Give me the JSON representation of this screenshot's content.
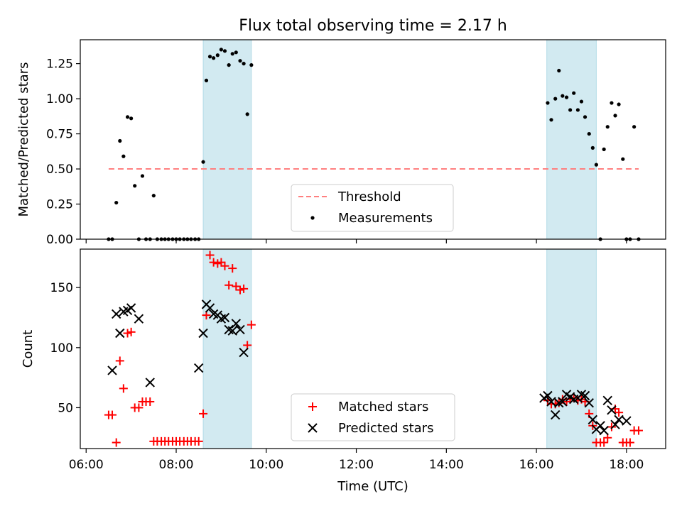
{
  "chart_data": [
    {
      "type": "scatter",
      "title": "Flux total observing time = 2.17 h",
      "xlabel": "",
      "ylabel": "Matched/Predicted stars",
      "xlim": [
        5.87,
        18.87
      ],
      "ylim": [
        0.0,
        1.42
      ],
      "yticks": [
        0.0,
        0.25,
        0.5,
        0.75,
        1.0,
        1.25
      ],
      "ytick_labels": [
        "0.00",
        "0.25",
        "0.50",
        "0.75",
        "1.00",
        "1.25"
      ],
      "shaded_spans": [
        [
          8.6,
          9.67
        ],
        [
          16.23,
          17.33
        ]
      ],
      "threshold": {
        "name": "Threshold",
        "y": 0.5,
        "x": [
          6.5,
          18.27
        ],
        "color": "#ff7f7f"
      },
      "legend": {
        "placement": "lower-center",
        "entries": [
          "Threshold",
          "Measurements"
        ]
      },
      "series": [
        {
          "name": "Measurements",
          "color": "#000000",
          "marker": "dot",
          "points": [
            [
              6.5,
              0.0
            ],
            [
              6.58,
              0.0
            ],
            [
              6.67,
              0.26
            ],
            [
              6.75,
              0.7
            ],
            [
              6.83,
              0.59
            ],
            [
              6.92,
              0.87
            ],
            [
              7.0,
              0.86
            ],
            [
              7.08,
              0.38
            ],
            [
              7.17,
              0.0
            ],
            [
              7.25,
              0.45
            ],
            [
              7.33,
              0.0
            ],
            [
              7.42,
              0.0
            ],
            [
              7.5,
              0.31
            ],
            [
              7.58,
              0.0
            ],
            [
              7.67,
              0.0
            ],
            [
              7.75,
              0.0
            ],
            [
              7.83,
              0.0
            ],
            [
              7.92,
              0.0
            ],
            [
              8.0,
              0.0
            ],
            [
              8.08,
              0.0
            ],
            [
              8.17,
              0.0
            ],
            [
              8.25,
              0.0
            ],
            [
              8.33,
              0.0
            ],
            [
              8.42,
              0.0
            ],
            [
              8.5,
              0.0
            ],
            [
              8.6,
              0.55
            ],
            [
              8.67,
              1.13
            ],
            [
              8.75,
              1.3
            ],
            [
              8.83,
              1.29
            ],
            [
              8.92,
              1.31
            ],
            [
              9.0,
              1.35
            ],
            [
              9.08,
              1.34
            ],
            [
              9.17,
              1.24
            ],
            [
              9.25,
              1.32
            ],
            [
              9.33,
              1.33
            ],
            [
              9.42,
              1.27
            ],
            [
              9.5,
              1.25
            ],
            [
              9.58,
              0.89
            ],
            [
              9.67,
              1.24
            ],
            [
              16.25,
              0.97
            ],
            [
              16.33,
              0.85
            ],
            [
              16.42,
              1.0
            ],
            [
              16.5,
              1.2
            ],
            [
              16.58,
              1.02
            ],
            [
              16.67,
              1.01
            ],
            [
              16.75,
              0.92
            ],
            [
              16.83,
              1.04
            ],
            [
              16.92,
              0.92
            ],
            [
              17.0,
              0.98
            ],
            [
              17.08,
              0.87
            ],
            [
              17.17,
              0.75
            ],
            [
              17.25,
              0.65
            ],
            [
              17.33,
              0.53
            ],
            [
              17.42,
              0.0
            ],
            [
              17.5,
              0.64
            ],
            [
              17.58,
              0.8
            ],
            [
              17.67,
              0.97
            ],
            [
              17.75,
              0.88
            ],
            [
              17.83,
              0.96
            ],
            [
              17.92,
              0.57
            ],
            [
              18.0,
              0.0
            ],
            [
              18.08,
              0.0
            ],
            [
              18.17,
              0.8
            ],
            [
              18.27,
              0.0
            ]
          ]
        }
      ]
    },
    {
      "type": "scatter",
      "title": "",
      "xlabel": "Time (UTC)",
      "ylabel": "Count",
      "xlim": [
        5.87,
        18.87
      ],
      "ylim": [
        16,
        182
      ],
      "xticks": [
        6,
        8,
        10,
        12,
        14,
        16,
        18
      ],
      "xtick_labels": [
        "06:00",
        "08:00",
        "10:00",
        "12:00",
        "14:00",
        "16:00",
        "18:00"
      ],
      "yticks": [
        50,
        100,
        150
      ],
      "ytick_labels": [
        "50",
        "100",
        "150"
      ],
      "shaded_spans": [
        [
          8.6,
          9.67
        ],
        [
          16.23,
          17.33
        ]
      ],
      "legend": {
        "placement": "lower-center",
        "entries": [
          "Matched stars",
          "Predicted stars"
        ]
      },
      "series": [
        {
          "name": "Matched stars",
          "color": "#ff0000",
          "marker": "plus",
          "points": [
            [
              6.5,
              44
            ],
            [
              6.58,
              44
            ],
            [
              6.67,
              21
            ],
            [
              6.75,
              89
            ],
            [
              6.83,
              66
            ],
            [
              6.92,
              112
            ],
            [
              7.0,
              113
            ],
            [
              7.08,
              50
            ],
            [
              7.17,
              50
            ],
            [
              7.25,
              55
            ],
            [
              7.33,
              55
            ],
            [
              7.42,
              55
            ],
            [
              7.5,
              22
            ],
            [
              7.58,
              22
            ],
            [
              7.67,
              22
            ],
            [
              7.75,
              22
            ],
            [
              7.83,
              22
            ],
            [
              7.92,
              22
            ],
            [
              8.0,
              22
            ],
            [
              8.08,
              22
            ],
            [
              8.17,
              22
            ],
            [
              8.25,
              22
            ],
            [
              8.33,
              22
            ],
            [
              8.42,
              22
            ],
            [
              8.5,
              22
            ],
            [
              8.6,
              45
            ],
            [
              8.67,
              127
            ],
            [
              8.75,
              177
            ],
            [
              8.83,
              171
            ],
            [
              8.92,
              170
            ],
            [
              9.0,
              171
            ],
            [
              9.08,
              168
            ],
            [
              9.17,
              152
            ],
            [
              9.25,
              166
            ],
            [
              9.33,
              151
            ],
            [
              9.42,
              148
            ],
            [
              9.5,
              149
            ],
            [
              9.58,
              102
            ],
            [
              9.67,
              119
            ],
            [
              16.25,
              56
            ],
            [
              16.33,
              53
            ],
            [
              16.42,
              53
            ],
            [
              16.5,
              54
            ],
            [
              16.58,
              57
            ],
            [
              16.67,
              55
            ],
            [
              16.75,
              57
            ],
            [
              16.83,
              58
            ],
            [
              16.92,
              56
            ],
            [
              17.0,
              57
            ],
            [
              17.08,
              55
            ],
            [
              17.17,
              45
            ],
            [
              17.25,
              35
            ],
            [
              17.33,
              21
            ],
            [
              17.42,
              21
            ],
            [
              17.5,
              21
            ],
            [
              17.58,
              25
            ],
            [
              17.67,
              34
            ],
            [
              17.75,
              49
            ],
            [
              17.83,
              46
            ],
            [
              17.92,
              21
            ],
            [
              18.0,
              21
            ],
            [
              18.08,
              21
            ],
            [
              18.17,
              31
            ],
            [
              18.27,
              31
            ]
          ]
        },
        {
          "name": "Predicted stars",
          "color": "#000000",
          "marker": "x",
          "points": [
            [
              6.58,
              81
            ],
            [
              6.67,
              128
            ],
            [
              6.75,
              112
            ],
            [
              6.83,
              130
            ],
            [
              6.92,
              131
            ],
            [
              7.0,
              133
            ],
            [
              7.17,
              124
            ],
            [
              7.42,
              71
            ],
            [
              8.5,
              83
            ],
            [
              8.6,
              112
            ],
            [
              8.67,
              136
            ],
            [
              8.75,
              133
            ],
            [
              8.83,
              128
            ],
            [
              8.92,
              127
            ],
            [
              9.0,
              124
            ],
            [
              9.08,
              125
            ],
            [
              9.17,
              115
            ],
            [
              9.25,
              114
            ],
            [
              9.33,
              120
            ],
            [
              9.42,
              115
            ],
            [
              9.5,
              96
            ],
            [
              16.17,
              58
            ],
            [
              16.25,
              60
            ],
            [
              16.33,
              55
            ],
            [
              16.42,
              44
            ],
            [
              16.5,
              54
            ],
            [
              16.58,
              55
            ],
            [
              16.67,
              61
            ],
            [
              16.75,
              59
            ],
            [
              16.83,
              57
            ],
            [
              16.92,
              58
            ],
            [
              17.0,
              61
            ],
            [
              17.08,
              60
            ],
            [
              17.17,
              54
            ],
            [
              17.25,
              40
            ],
            [
              17.33,
              32
            ],
            [
              17.42,
              35
            ],
            [
              17.5,
              31
            ],
            [
              17.58,
              56
            ],
            [
              17.67,
              48
            ],
            [
              17.75,
              36
            ],
            [
              17.83,
              40
            ],
            [
              18.0,
              39
            ]
          ]
        }
      ]
    }
  ]
}
